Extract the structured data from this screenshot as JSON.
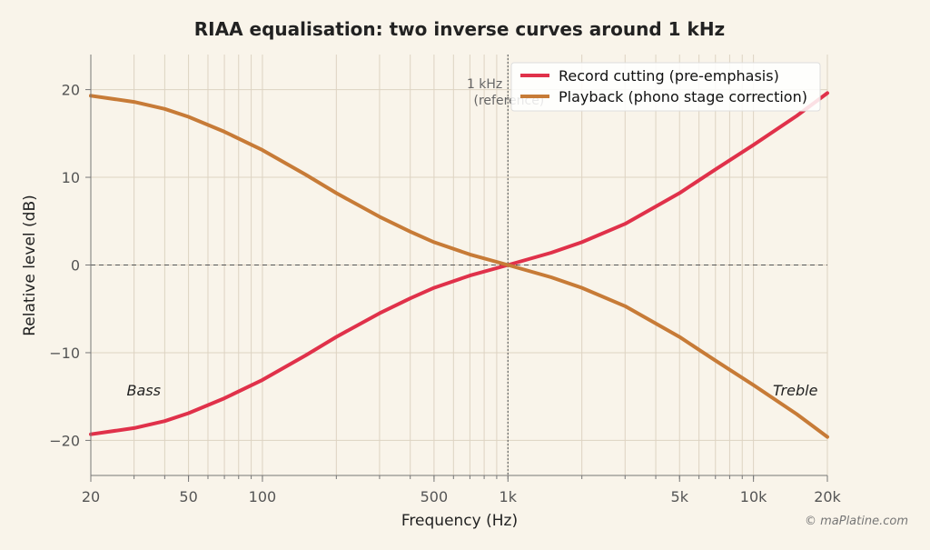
{
  "chart_data": {
    "type": "line",
    "title": "RIAA equalisation: two inverse curves around 1 kHz",
    "xlabel": "Frequency (Hz)",
    "ylabel": "Relative level (dB)",
    "xscale": "log",
    "xlim": [
      20,
      20000
    ],
    "ylim": [
      -24,
      24
    ],
    "x_ticks": [
      {
        "value": 20,
        "label": "20"
      },
      {
        "value": 50,
        "label": "50"
      },
      {
        "value": 100,
        "label": "100"
      },
      {
        "value": 500,
        "label": "500"
      },
      {
        "value": 1000,
        "label": "1k"
      },
      {
        "value": 5000,
        "label": "5k"
      },
      {
        "value": 10000,
        "label": "10k"
      },
      {
        "value": 20000,
        "label": "20k"
      }
    ],
    "y_ticks": [
      {
        "value": 20,
        "label": "20"
      },
      {
        "value": 10,
        "label": "10"
      },
      {
        "value": 0,
        "label": "0"
      },
      {
        "value": -10,
        "label": "−10"
      },
      {
        "value": -20,
        "label": "−20"
      }
    ],
    "grid": true,
    "legend": "top-right",
    "x": [
      20,
      30,
      40,
      50,
      70,
      100,
      150,
      200,
      300,
      400,
      500,
      700,
      1000,
      1500,
      2000,
      3000,
      5000,
      7000,
      10000,
      15000,
      20000
    ],
    "series": [
      {
        "name": "Record cutting (pre-emphasis)",
        "color": "#e0314a",
        "values": [
          -19.3,
          -18.6,
          -17.8,
          -16.9,
          -15.2,
          -13.1,
          -10.3,
          -8.2,
          -5.5,
          -3.8,
          -2.6,
          -1.2,
          0.0,
          1.4,
          2.6,
          4.7,
          8.2,
          10.9,
          13.7,
          17.0,
          19.6
        ]
      },
      {
        "name": "Playback (phono stage correction)",
        "color": "#c77b37",
        "values": [
          19.3,
          18.6,
          17.8,
          16.9,
          15.2,
          13.1,
          10.3,
          8.2,
          5.5,
          3.8,
          2.6,
          1.2,
          0.0,
          -1.4,
          -2.6,
          -4.7,
          -8.2,
          -10.9,
          -13.7,
          -17.0,
          -19.6
        ]
      }
    ],
    "reference_line": {
      "x": 1000,
      "line1": "1 kHz",
      "line2": "(reference)"
    },
    "annotations": [
      {
        "text": "Bass",
        "x": 28,
        "y": -14.9
      },
      {
        "text": "Treble",
        "x": 12000,
        "y": -14.9
      }
    ]
  },
  "footer": {
    "copyright": "© maPlatine.com"
  }
}
